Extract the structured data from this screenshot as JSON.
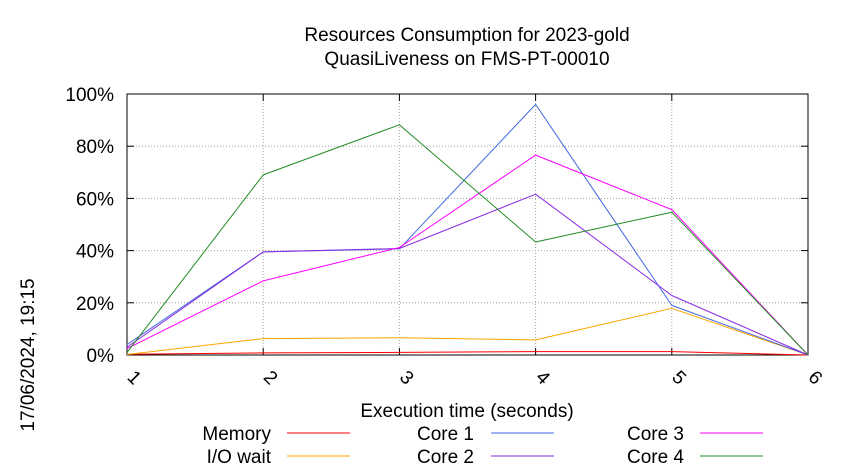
{
  "chart_data": {
    "type": "line",
    "title": "Resources Consumption for 2023-gold",
    "subtitle": "QuasiLiveness on FMS-PT-00010",
    "xlabel": "Execution time (seconds)",
    "ylabel": "",
    "timestamp": "17/06/2024, 19:15",
    "x": [
      1,
      2,
      3,
      4,
      5,
      6
    ],
    "xlim": [
      1,
      6
    ],
    "ylim": [
      0,
      100
    ],
    "x_ticks": [
      "1",
      "2",
      "3",
      "4",
      "5",
      "6"
    ],
    "y_ticks": [
      {
        "value": 0,
        "label": "0%"
      },
      {
        "value": 20,
        "label": "20%"
      },
      {
        "value": 40,
        "label": "40%"
      },
      {
        "value": 60,
        "label": "60%"
      },
      {
        "value": 80,
        "label": "80%"
      },
      {
        "value": 100,
        "label": "100%"
      }
    ],
    "grid": true,
    "legend_position": "bottom",
    "series": [
      {
        "name": "Memory",
        "color": "#ff0000",
        "values": [
          0.3,
          0.8,
          1.0,
          1.3,
          1.3,
          0
        ]
      },
      {
        "name": "I/O wait",
        "color": "#ffa500",
        "values": [
          0.2,
          6.3,
          6.6,
          5.8,
          17.9,
          0
        ]
      },
      {
        "name": "Core 1",
        "color": "#4169e1",
        "values": [
          4.0,
          39.5,
          40.7,
          96.0,
          19.0,
          0
        ]
      },
      {
        "name": "Core 2",
        "color": "#8a2be2",
        "values": [
          3.0,
          39.5,
          40.8,
          61.6,
          22.8,
          0
        ]
      },
      {
        "name": "Core 3",
        "color": "#ff00ff",
        "values": [
          2.5,
          28.4,
          41.2,
          76.6,
          55.7,
          0
        ]
      },
      {
        "name": "Core 4",
        "color": "#228b22",
        "values": [
          1.0,
          69.0,
          88.2,
          43.3,
          54.7,
          0
        ]
      }
    ]
  }
}
